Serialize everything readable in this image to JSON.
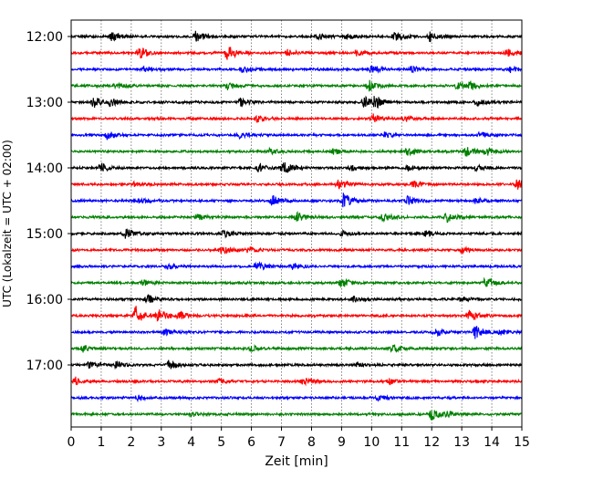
{
  "chart_data": {
    "type": "line",
    "title": "",
    "xlabel": "Zeit  [min]",
    "ylabel": "UTC (Lokalzeit = UTC + 02:00)",
    "xlim": [
      0,
      15
    ],
    "x_ticks": [
      0,
      1,
      2,
      3,
      4,
      5,
      6,
      7,
      8,
      9,
      10,
      11,
      12,
      13,
      14,
      15
    ],
    "y_tick_labels": [
      "12:00",
      "13:00",
      "14:00",
      "15:00",
      "16:00",
      "17:00"
    ],
    "trace_minutes_per_line": 15,
    "grid": "vertical dotted lines at each minute",
    "legend": "none",
    "trace_colors_cycle": [
      "#000000",
      "#ff0000",
      "#0000ff",
      "#008000"
    ],
    "traces": [
      {
        "start": "12:00",
        "events": [
          {
            "t": 1.35,
            "a": 5
          },
          {
            "t": 4.15,
            "a": 6
          },
          {
            "t": 8.2,
            "a": 3
          },
          {
            "t": 9.15,
            "a": 3
          },
          {
            "t": 10.75,
            "a": 5
          },
          {
            "t": 11.95,
            "a": 6
          }
        ]
      },
      {
        "start": "12:15",
        "events": [
          {
            "t": 2.25,
            "a": 7
          },
          {
            "t": 5.2,
            "a": 9
          },
          {
            "t": 7.2,
            "a": 3
          },
          {
            "t": 9.5,
            "a": 3
          },
          {
            "t": 14.5,
            "a": 4
          }
        ]
      },
      {
        "start": "12:30",
        "events": [
          {
            "t": 2.4,
            "a": 3
          },
          {
            "t": 5.7,
            "a": 4
          },
          {
            "t": 10.0,
            "a": 5
          },
          {
            "t": 11.3,
            "a": 4
          },
          {
            "t": 14.6,
            "a": 3
          }
        ]
      },
      {
        "start": "12:45",
        "events": [
          {
            "t": 1.5,
            "a": 3
          },
          {
            "t": 5.2,
            "a": 4
          },
          {
            "t": 9.9,
            "a": 6
          },
          {
            "t": 12.85,
            "a": 4
          },
          {
            "t": 13.3,
            "a": 4
          }
        ]
      },
      {
        "start": "13:00",
        "events": [
          {
            "t": 0.75,
            "a": 6
          },
          {
            "t": 1.3,
            "a": 4
          },
          {
            "t": 5.65,
            "a": 5
          },
          {
            "t": 9.75,
            "a": 7
          },
          {
            "t": 10.1,
            "a": 6
          },
          {
            "t": 13.5,
            "a": 4
          }
        ]
      },
      {
        "start": "13:15",
        "events": [
          {
            "t": 6.2,
            "a": 4
          },
          {
            "t": 10.05,
            "a": 5
          },
          {
            "t": 11.1,
            "a": 3
          }
        ]
      },
      {
        "start": "13:30",
        "events": [
          {
            "t": 1.2,
            "a": 4
          },
          {
            "t": 5.6,
            "a": 3
          },
          {
            "t": 10.4,
            "a": 3
          },
          {
            "t": 13.6,
            "a": 3
          }
        ]
      },
      {
        "start": "13:45",
        "events": [
          {
            "t": 6.6,
            "a": 3
          },
          {
            "t": 8.7,
            "a": 3
          },
          {
            "t": 11.2,
            "a": 4
          },
          {
            "t": 13.15,
            "a": 5
          },
          {
            "t": 13.8,
            "a": 4
          }
        ]
      },
      {
        "start": "14:00",
        "events": [
          {
            "t": 1.0,
            "a": 5
          },
          {
            "t": 6.25,
            "a": 5
          },
          {
            "t": 7.05,
            "a": 7
          },
          {
            "t": 9.3,
            "a": 3
          },
          {
            "t": 11.2,
            "a": 3
          },
          {
            "t": 13.5,
            "a": 3
          }
        ]
      },
      {
        "start": "14:15",
        "events": [
          {
            "t": 2.1,
            "a": 3
          },
          {
            "t": 8.9,
            "a": 6
          },
          {
            "t": 11.4,
            "a": 4
          },
          {
            "t": 14.85,
            "a": 6
          }
        ]
      },
      {
        "start": "14:30",
        "events": [
          {
            "t": 2.3,
            "a": 4
          },
          {
            "t": 6.7,
            "a": 6
          },
          {
            "t": 9.05,
            "a": 8
          },
          {
            "t": 11.2,
            "a": 5
          },
          {
            "t": 13.45,
            "a": 3
          }
        ]
      },
      {
        "start": "14:45",
        "events": [
          {
            "t": 4.2,
            "a": 3
          },
          {
            "t": 7.5,
            "a": 5
          },
          {
            "t": 10.35,
            "a": 5
          },
          {
            "t": 12.5,
            "a": 5
          }
        ]
      },
      {
        "start": "15:00",
        "events": [
          {
            "t": 1.8,
            "a": 6
          },
          {
            "t": 5.1,
            "a": 4
          },
          {
            "t": 9.0,
            "a": 3
          },
          {
            "t": 11.8,
            "a": 3
          }
        ]
      },
      {
        "start": "15:15",
        "events": [
          {
            "t": 5.0,
            "a": 5
          },
          {
            "t": 5.9,
            "a": 3
          },
          {
            "t": 13.0,
            "a": 3
          }
        ]
      },
      {
        "start": "15:30",
        "events": [
          {
            "t": 3.2,
            "a": 3
          },
          {
            "t": 6.15,
            "a": 5
          },
          {
            "t": 7.35,
            "a": 4
          }
        ]
      },
      {
        "start": "15:45",
        "events": [
          {
            "t": 2.4,
            "a": 3
          },
          {
            "t": 9.0,
            "a": 5
          },
          {
            "t": 13.8,
            "a": 7
          }
        ]
      },
      {
        "start": "16:00",
        "events": [
          {
            "t": 2.55,
            "a": 5
          },
          {
            "t": 9.4,
            "a": 3
          },
          {
            "t": 13.0,
            "a": 3
          }
        ]
      },
      {
        "start": "16:15",
        "events": [
          {
            "t": 2.15,
            "a": 10
          },
          {
            "t": 2.9,
            "a": 7
          },
          {
            "t": 3.6,
            "a": 4
          },
          {
            "t": 13.25,
            "a": 6
          }
        ]
      },
      {
        "start": "16:30",
        "events": [
          {
            "t": 3.1,
            "a": 3
          },
          {
            "t": 12.1,
            "a": 5
          },
          {
            "t": 13.45,
            "a": 7
          },
          {
            "t": 14.3,
            "a": 3
          }
        ]
      },
      {
        "start": "16:45",
        "events": [
          {
            "t": 0.4,
            "a": 4
          },
          {
            "t": 6.0,
            "a": 3
          },
          {
            "t": 10.7,
            "a": 4
          }
        ]
      },
      {
        "start": "17:00",
        "events": [
          {
            "t": 0.6,
            "a": 4
          },
          {
            "t": 1.5,
            "a": 3
          },
          {
            "t": 3.25,
            "a": 5
          },
          {
            "t": 9.55,
            "a": 3
          }
        ]
      },
      {
        "start": "17:15",
        "events": [
          {
            "t": 0.15,
            "a": 4
          },
          {
            "t": 4.9,
            "a": 3
          },
          {
            "t": 7.7,
            "a": 4
          },
          {
            "t": 10.6,
            "a": 3
          }
        ]
      },
      {
        "start": "17:30",
        "events": [
          {
            "t": 2.2,
            "a": 3
          },
          {
            "t": 10.2,
            "a": 3
          }
        ]
      },
      {
        "start": "17:45",
        "events": [
          {
            "t": 4.0,
            "a": 3
          },
          {
            "t": 12.0,
            "a": 6
          },
          {
            "t": 12.5,
            "a": 3
          }
        ]
      }
    ]
  }
}
